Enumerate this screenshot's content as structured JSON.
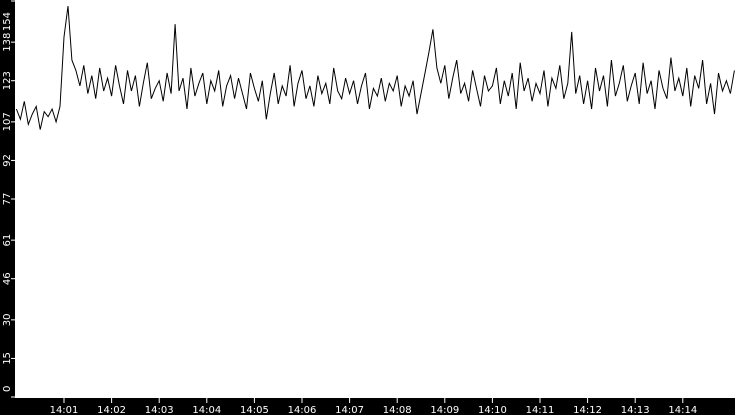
{
  "chart_data": {
    "type": "line",
    "title": "",
    "xlabel": "",
    "ylabel": "",
    "ylim": [
      0,
      154
    ],
    "xlim": [
      "14:00:00",
      "14:15:05"
    ],
    "grid": false,
    "colors": {
      "background": "#000000",
      "plot_background": "#ffffff",
      "line": "#000000",
      "text": "#ffffff"
    },
    "y_ticks": [
      "0",
      "15",
      "30",
      "46",
      "61",
      "77",
      "92",
      "107",
      "123",
      "138",
      "154"
    ],
    "x_ticks": [
      "14:01",
      "14:02",
      "14:03",
      "14:04",
      "14:05",
      "14:06",
      "14:07",
      "14:08",
      "14:09",
      "14:10",
      "14:11",
      "14:12",
      "14:13",
      "14:14"
    ],
    "series": [
      {
        "x": [
          "14:00:00",
          "14:00:05",
          "14:00:10",
          "14:00:15",
          "14:00:20",
          "14:00:25",
          "14:00:30",
          "14:00:35",
          "14:00:40",
          "14:00:45",
          "14:00:50",
          "14:00:55",
          "14:01:00",
          "14:01:05",
          "14:01:10",
          "14:01:15",
          "14:01:20",
          "14:01:25",
          "14:01:30",
          "14:01:35",
          "14:01:40",
          "14:01:45",
          "14:01:50",
          "14:01:55",
          "14:02:00",
          "14:02:05",
          "14:02:10",
          "14:02:15",
          "14:02:20",
          "14:02:25",
          "14:02:30",
          "14:02:35",
          "14:02:40",
          "14:02:45",
          "14:02:50",
          "14:02:55",
          "14:03:00",
          "14:03:05",
          "14:03:10",
          "14:03:15",
          "14:03:20",
          "14:03:25",
          "14:03:30",
          "14:03:35",
          "14:03:40",
          "14:03:45",
          "14:03:50",
          "14:03:55",
          "14:04:00",
          "14:04:05",
          "14:04:10",
          "14:04:15",
          "14:04:20",
          "14:04:25",
          "14:04:30",
          "14:04:35",
          "14:04:40",
          "14:04:45",
          "14:04:50",
          "14:04:55",
          "14:05:00",
          "14:05:05",
          "14:05:10",
          "14:05:15",
          "14:05:20",
          "14:05:25",
          "14:05:30",
          "14:05:35",
          "14:05:40",
          "14:05:45",
          "14:05:50",
          "14:05:55",
          "14:06:00",
          "14:06:05",
          "14:06:10",
          "14:06:15",
          "14:06:20",
          "14:06:25",
          "14:06:30",
          "14:06:35",
          "14:06:40",
          "14:06:45",
          "14:06:50",
          "14:06:55",
          "14:07:00",
          "14:07:05",
          "14:07:10",
          "14:07:15",
          "14:07:20",
          "14:07:25",
          "14:07:30",
          "14:07:35",
          "14:07:40",
          "14:07:45",
          "14:07:50",
          "14:07:55",
          "14:08:00",
          "14:08:05",
          "14:08:10",
          "14:08:15",
          "14:08:20",
          "14:08:25",
          "14:08:30",
          "14:08:35",
          "14:08:40",
          "14:08:45",
          "14:08:50",
          "14:08:55",
          "14:09:00",
          "14:09:05",
          "14:09:10",
          "14:09:15",
          "14:09:20",
          "14:09:25",
          "14:09:30",
          "14:09:35",
          "14:09:40",
          "14:09:45",
          "14:09:50",
          "14:09:55",
          "14:10:00",
          "14:10:05",
          "14:10:10",
          "14:10:15",
          "14:10:20",
          "14:10:25",
          "14:10:30",
          "14:10:35",
          "14:10:40",
          "14:10:45",
          "14:10:50",
          "14:10:55",
          "14:11:00",
          "14:11:05",
          "14:11:10",
          "14:11:15",
          "14:11:20",
          "14:11:25",
          "14:11:30",
          "14:11:35",
          "14:11:40",
          "14:11:45",
          "14:11:50",
          "14:11:55",
          "14:12:00",
          "14:12:05",
          "14:12:10",
          "14:12:15",
          "14:12:20",
          "14:12:25",
          "14:12:30",
          "14:12:35",
          "14:12:40",
          "14:12:45",
          "14:12:50",
          "14:12:55",
          "14:13:00",
          "14:13:05",
          "14:13:10",
          "14:13:15",
          "14:13:20",
          "14:13:25",
          "14:13:30",
          "14:13:35",
          "14:13:40",
          "14:13:45",
          "14:13:50",
          "14:13:55",
          "14:14:00",
          "14:14:05",
          "14:14:10",
          "14:14:15",
          "14:14:20",
          "14:14:25",
          "14:14:30",
          "14:14:35",
          "14:14:40",
          "14:14:45",
          "14:14:50",
          "14:14:55",
          "14:15:00",
          "14:15:05"
        ],
        "values": [
          112,
          108,
          115,
          106,
          110,
          113,
          104,
          111,
          109,
          112,
          107,
          113,
          140,
          152,
          131,
          127,
          121,
          129,
          118,
          125,
          116,
          128,
          119,
          124,
          117,
          129,
          121,
          114,
          127,
          119,
          125,
          113,
          122,
          130,
          116,
          120,
          123,
          115,
          126,
          118,
          145,
          119,
          124,
          112,
          128,
          117,
          122,
          126,
          114,
          123,
          119,
          127,
          113,
          121,
          125,
          116,
          124,
          118,
          112,
          126,
          120,
          115,
          123,
          108,
          118,
          126,
          114,
          121,
          117,
          129,
          113,
          122,
          127,
          116,
          121,
          113,
          125,
          118,
          122,
          114,
          128,
          119,
          116,
          124,
          118,
          123,
          114,
          121,
          126,
          112,
          120,
          117,
          124,
          115,
          122,
          119,
          125,
          113,
          121,
          117,
          123,
          110,
          118,
          126,
          134,
          143,
          128,
          122,
          129,
          116,
          124,
          131,
          118,
          122,
          115,
          127,
          120,
          113,
          125,
          119,
          121,
          128,
          114,
          123,
          117,
          126,
          112,
          130,
          119,
          124,
          115,
          122,
          118,
          127,
          113,
          124,
          120,
          129,
          116,
          122,
          142,
          118,
          125,
          114,
          123,
          112,
          128,
          119,
          125,
          113,
          131,
          117,
          122,
          129,
          115,
          121,
          126,
          114,
          130,
          118,
          123,
          112,
          127,
          120,
          116,
          132,
          119,
          124,
          117,
          128,
          113,
          125,
          120,
          131,
          114,
          122,
          110,
          126,
          119,
          123,
          118,
          127
        ]
      }
    ]
  }
}
